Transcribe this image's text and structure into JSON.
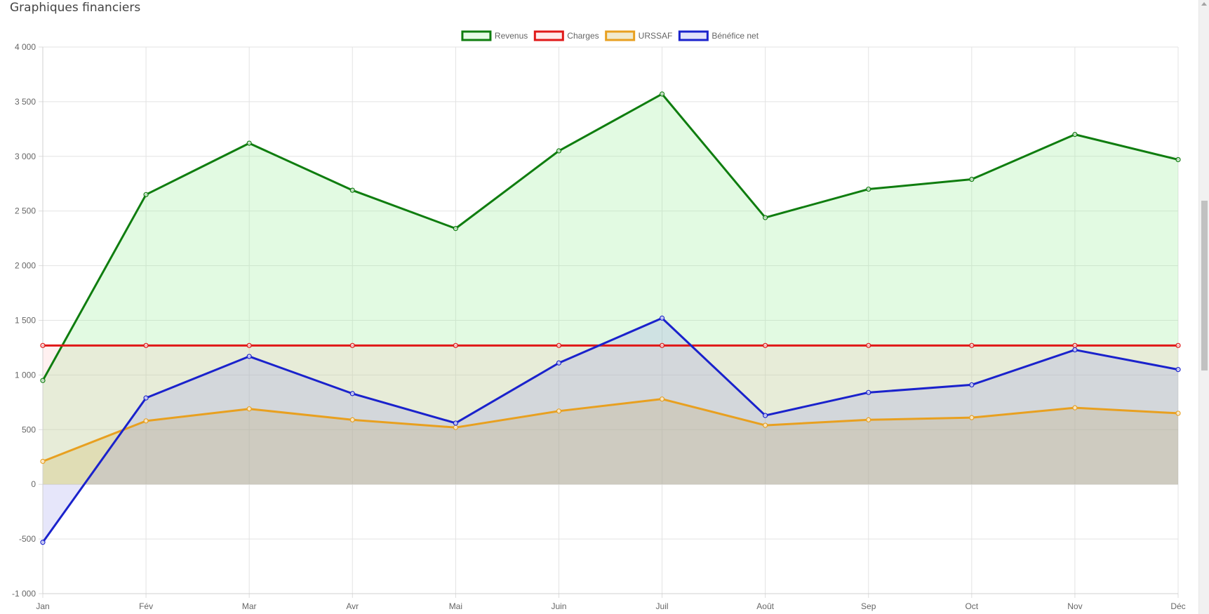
{
  "page": {
    "title": "Graphiques financiers"
  },
  "chart_data": {
    "type": "line",
    "title": "",
    "xlabel": "",
    "ylabel": "",
    "categories": [
      "Jan",
      "Fév",
      "Mar",
      "Avr",
      "Mai",
      "Juin",
      "Juil",
      "Août",
      "Sep",
      "Oct",
      "Nov",
      "Déc"
    ],
    "ylim": [
      -1000,
      4000
    ],
    "yticks": [
      4000,
      3500,
      3000,
      2500,
      2000,
      1500,
      1000,
      500,
      0,
      -500,
      -1000
    ],
    "ytick_labels": [
      "4 000",
      "3 500",
      "3 000",
      "2 500",
      "2 000",
      "1 500",
      "1 000",
      "500",
      "0",
      "-500",
      "-1 000"
    ],
    "grid": true,
    "legend_position": "top-center",
    "area_fill": true,
    "series": [
      {
        "name": "Revenus",
        "color": "#0f7d0f",
        "fill": "rgba(160,240,160,0.30)",
        "values": [
          950,
          2650,
          3120,
          2690,
          2340,
          3050,
          3570,
          2440,
          2700,
          2790,
          3200,
          2970
        ]
      },
      {
        "name": "Charges",
        "color": "#e01818",
        "fill": "rgba(255,170,170,0.18)",
        "values": [
          1270,
          1270,
          1270,
          1270,
          1270,
          1270,
          1270,
          1270,
          1270,
          1270,
          1270,
          1270
        ]
      },
      {
        "name": "URSSAF",
        "color": "#e8a020",
        "fill": "rgba(200,170,60,0.22)",
        "values": [
          210,
          580,
          690,
          590,
          520,
          670,
          780,
          540,
          590,
          610,
          700,
          650
        ]
      },
      {
        "name": "Bénéfice net",
        "color": "#1a22cc",
        "fill": "rgba(140,140,230,0.22)",
        "values": [
          -530,
          790,
          1170,
          830,
          560,
          1110,
          1520,
          630,
          840,
          910,
          1230,
          1050
        ]
      }
    ]
  }
}
